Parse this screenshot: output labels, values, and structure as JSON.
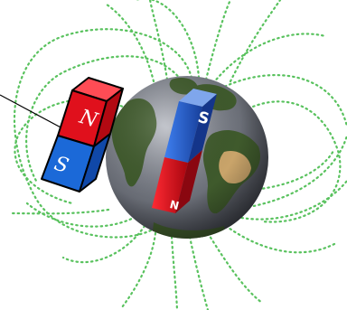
{
  "bar_magnet": {
    "north_label": "N",
    "south_label": "S",
    "north_color": "#e0101c",
    "south_color": "#1b69d8"
  },
  "earth_magnet": {
    "top_label": "S",
    "bottom_label": "N",
    "top_color": "#2463d6",
    "bottom_color": "#d8101a"
  },
  "field_line_color": "#59c25e",
  "earth_colors": {
    "ocean": "#6b6f78",
    "land": "#3f5a2c",
    "desert": "#c9a46a"
  }
}
